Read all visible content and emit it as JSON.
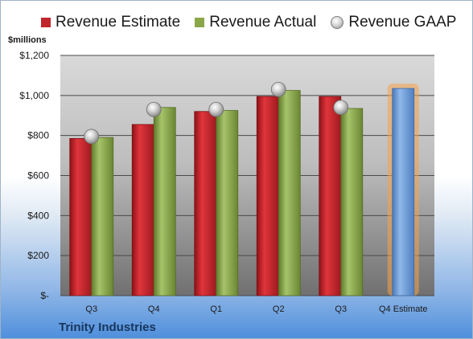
{
  "legend": {
    "estimate": "Revenue Estimate",
    "actual": "Revenue Actual",
    "gaap": "Revenue GAAP"
  },
  "unit_label": "$millions",
  "company": "Trinity Industries",
  "colors": {
    "estimate": "#c0262c",
    "actual": "#8aa84a",
    "gaap": "#bdbdbd",
    "forecast": "#6b9bd6",
    "forecast_glow": "#f5a24b"
  },
  "chart_data": {
    "type": "bar",
    "categories": [
      "Q3",
      "Q4",
      "Q1",
      "Q2",
      "Q3",
      "Q4 Estimate"
    ],
    "series": [
      {
        "name": "Revenue Estimate",
        "values": [
          785,
          855,
          920,
          995,
          995,
          null
        ]
      },
      {
        "name": "Revenue Actual",
        "values": [
          790,
          940,
          925,
          1025,
          935,
          1035
        ]
      },
      {
        "name": "Revenue GAAP",
        "values": [
          795,
          930,
          930,
          1030,
          940,
          null
        ]
      }
    ],
    "forecast_category": "Q4 Estimate",
    "ylim": [
      0,
      1200
    ],
    "yticks": [
      0,
      200,
      400,
      600,
      800,
      1000,
      1200
    ],
    "ytick_labels": [
      "$-",
      "$200",
      "$400",
      "$600",
      "$800",
      "$1,000",
      "$1,200"
    ],
    "grid": true,
    "legend_position": "top"
  }
}
